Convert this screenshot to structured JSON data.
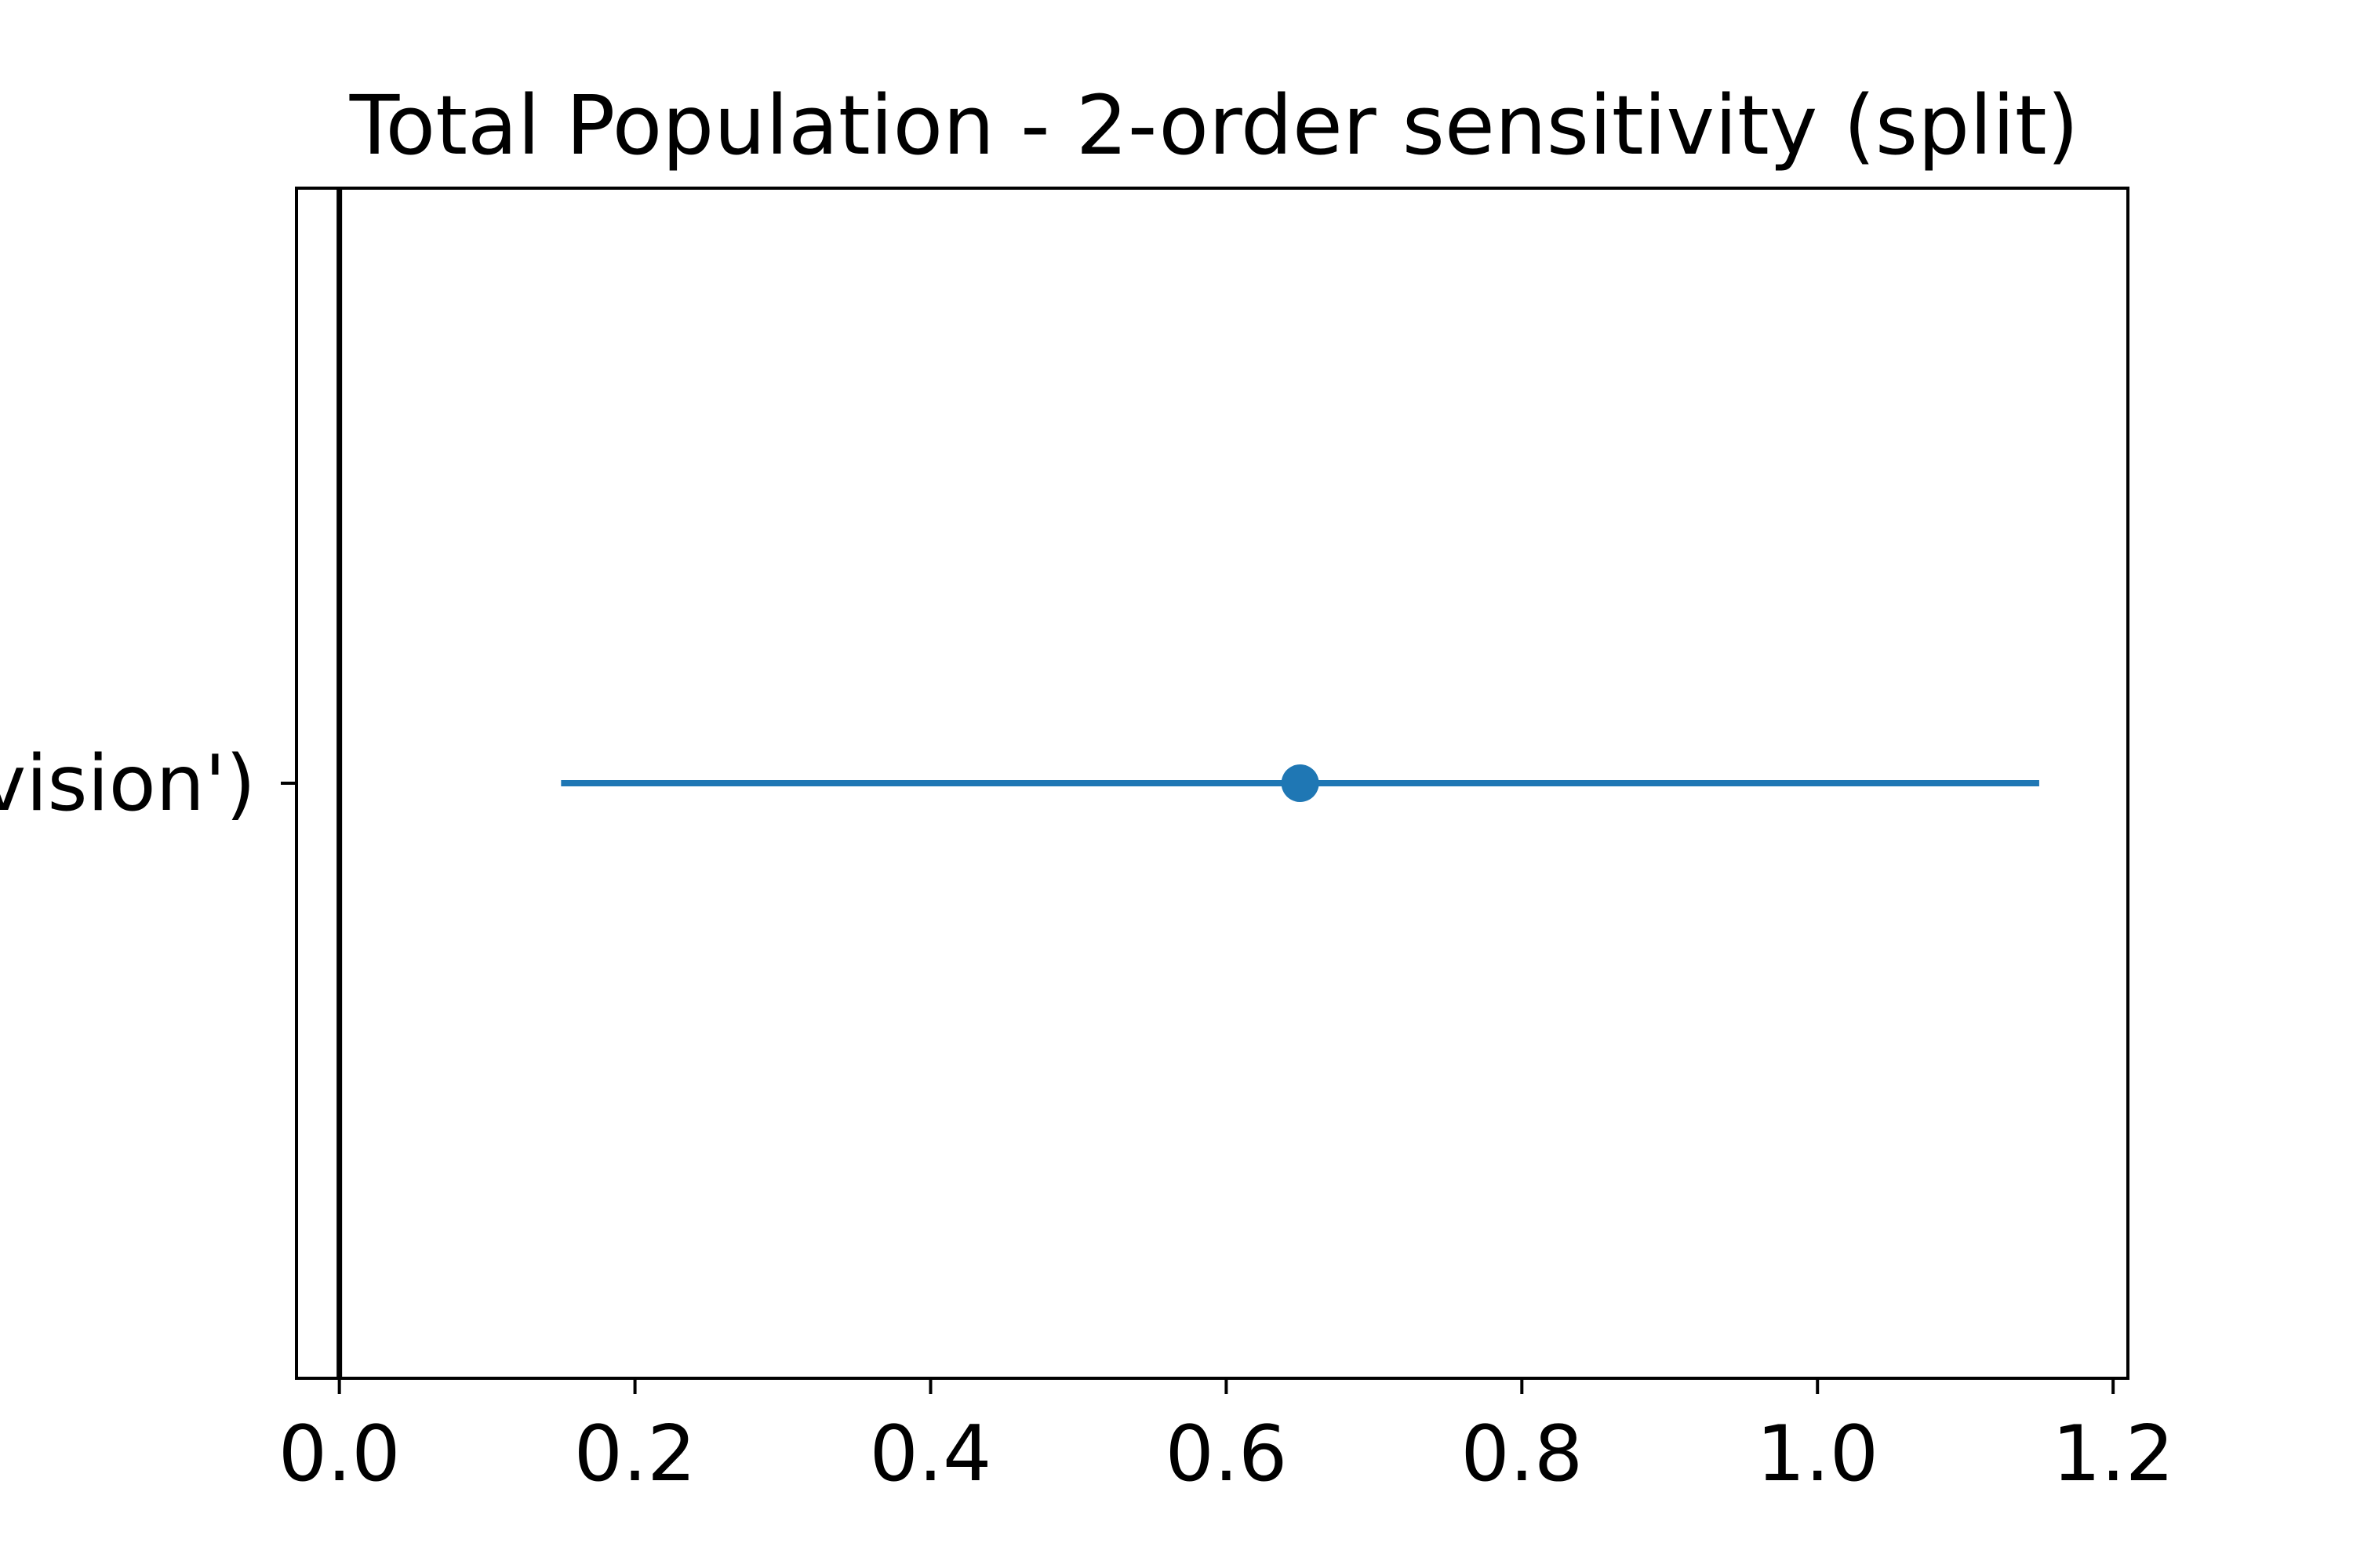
{
  "chart_data": {
    "type": "scatter",
    "title": "Total Population - 2-order sensitivity (split)",
    "xlabel": "",
    "ylabel": "",
    "xlim": [
      -0.029,
      1.21
    ],
    "xticks": [
      0.0,
      0.2,
      0.4,
      0.6,
      0.8,
      1.0,
      1.2
    ],
    "xtick_labels": [
      "0.0",
      "0.2",
      "0.4",
      "0.6",
      "0.8",
      "1.0",
      "1.2"
    ],
    "categories": [
      "vision')"
    ],
    "series": [
      {
        "points": [
          {
            "category": "vision')",
            "value": 0.65,
            "ci_low": 0.15,
            "ci_high": 1.15
          }
        ]
      }
    ],
    "reference_line_x": 0.0,
    "grid": false,
    "legend": "none",
    "colors": {
      "series": "#1f77b4",
      "reference": "#000000",
      "axes": "#000000"
    }
  }
}
